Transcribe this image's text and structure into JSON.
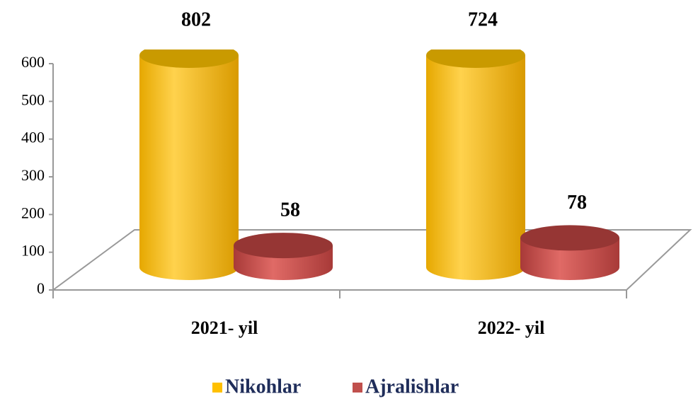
{
  "chart_data": {
    "type": "bar3d",
    "categories": [
      "2021- yil",
      "2022- yil"
    ],
    "series": [
      {
        "name": "Nikohlar",
        "color": "#ffc000",
        "values": [
          802,
          724
        ]
      },
      {
        "name": "Ajralishlar",
        "color": "#c0504d",
        "values": [
          58,
          78
        ]
      }
    ],
    "ylim": [
      0,
      600
    ],
    "yticks": [
      0,
      100,
      200,
      300,
      400,
      500,
      600
    ],
    "legend": "bottom"
  }
}
